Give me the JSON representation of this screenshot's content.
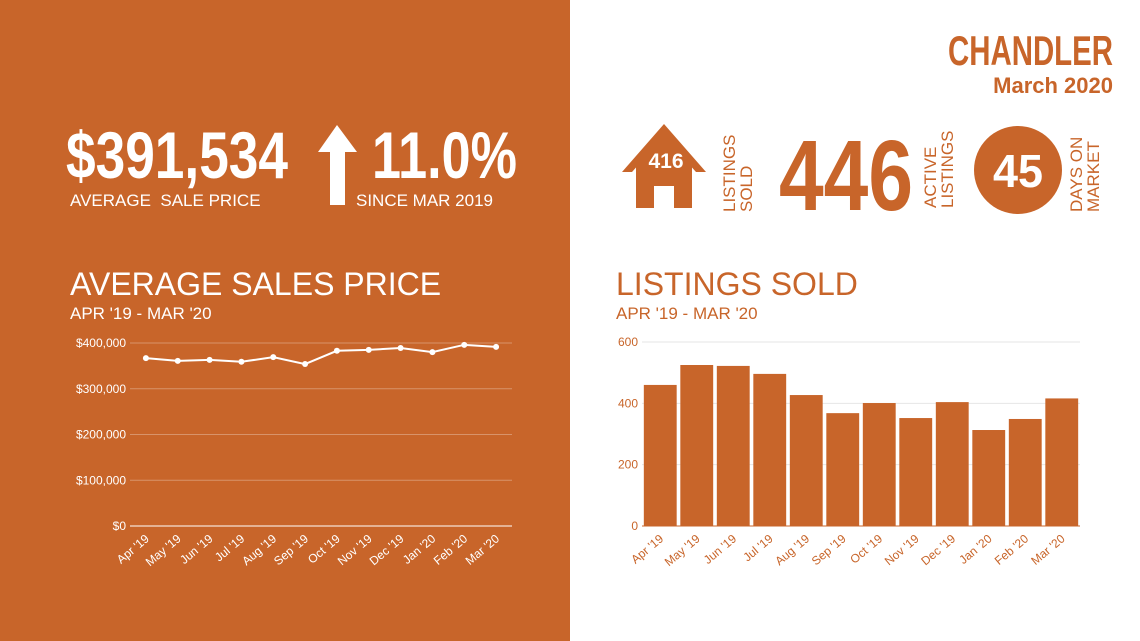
{
  "header": {
    "city": "CHANDLER",
    "date": "March 2020"
  },
  "stats": {
    "average_price": "$391,534",
    "average_price_label": "AVERAGE  SALE PRICE",
    "change": "11.0%",
    "change_label": "SINCE MAR 2019",
    "listings_sold": "416",
    "listings_sold_label": [
      "LISTINGS",
      "SOLD"
    ],
    "active_listings": "446",
    "active_listings_label": [
      "ACTIVE",
      "LISTINGS"
    ],
    "days_on_market": "45",
    "days_on_market_label": [
      "DAYS ON",
      "MARKET"
    ]
  },
  "chart_data": [
    {
      "type": "line",
      "title": "AVERAGE SALES PRICE",
      "subtitle": "APR '19 - MAR '20",
      "categories": [
        "Apr '19",
        "May '19",
        "Jun '19",
        "Jul '19",
        "Aug '19",
        "Sep '19",
        "Oct '19",
        "Nov '19",
        "Dec '19",
        "Jan '20",
        "Feb '20",
        "Mar '20"
      ],
      "values": [
        367000,
        361000,
        363000,
        359000,
        369000,
        354000,
        383000,
        385000,
        389000,
        380000,
        396000,
        391534
      ],
      "color": "#ffffff",
      "ylim": [
        0,
        400000
      ],
      "yticks": [
        {
          "value": 0,
          "label": "$0"
        },
        {
          "value": 100000,
          "label": "$100,000"
        },
        {
          "value": 200000,
          "label": "$200,000"
        },
        {
          "value": 300000,
          "label": "$300,000"
        },
        {
          "value": 400000,
          "label": "$400,000"
        }
      ],
      "grid": true
    },
    {
      "type": "bar",
      "title": "LISTINGS SOLD",
      "subtitle": "APR '19 - MAR '20",
      "categories": [
        "Apr '19",
        "May '19",
        "Jun '19",
        "Jul '19",
        "Aug '19",
        "Sep '19",
        "Oct '19",
        "Nov '19",
        "Dec '19",
        "Jan '20",
        "Feb '20",
        "Mar '20"
      ],
      "values": [
        460,
        525,
        522,
        496,
        427,
        368,
        401,
        352,
        404,
        313,
        349,
        416
      ],
      "color": "#c8652a",
      "ylim": [
        0,
        600
      ],
      "yticks": [
        0,
        200,
        400,
        600
      ],
      "grid": true
    }
  ]
}
